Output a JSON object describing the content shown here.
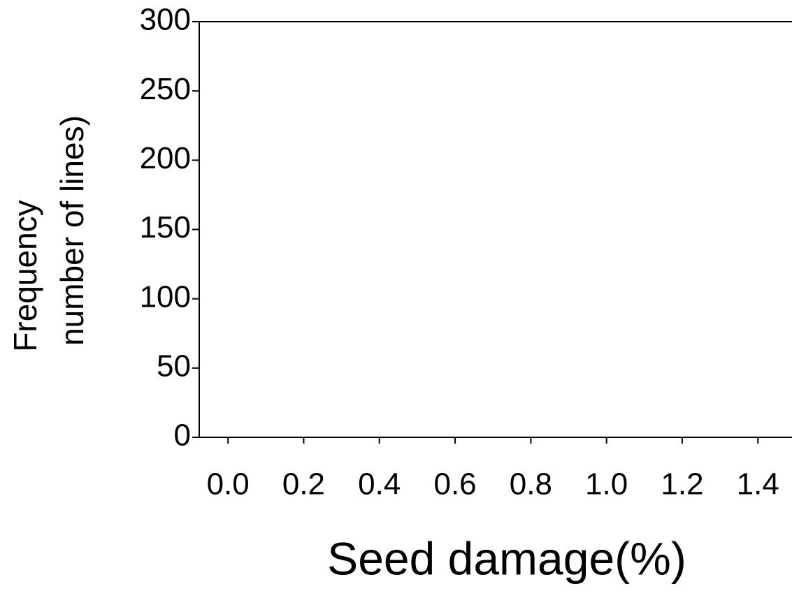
{
  "chart_data": {
    "type": "histogram",
    "xlabel": "Seed damage(%)",
    "ylabel": [
      "Frequency",
      "number of lines)"
    ],
    "xlim": [
      -0.076,
      1.49
    ],
    "xticks": [
      {
        "value": 0,
        "label": "0.0"
      },
      0.2,
      0.4,
      0.6,
      0.8,
      {
        "value": 1,
        "label": "1.0"
      },
      1.2,
      1.4
    ],
    "ylim": [
      0,
      300
    ],
    "yticks": [
      0,
      50,
      100,
      150,
      200,
      250,
      300
    ]
  }
}
